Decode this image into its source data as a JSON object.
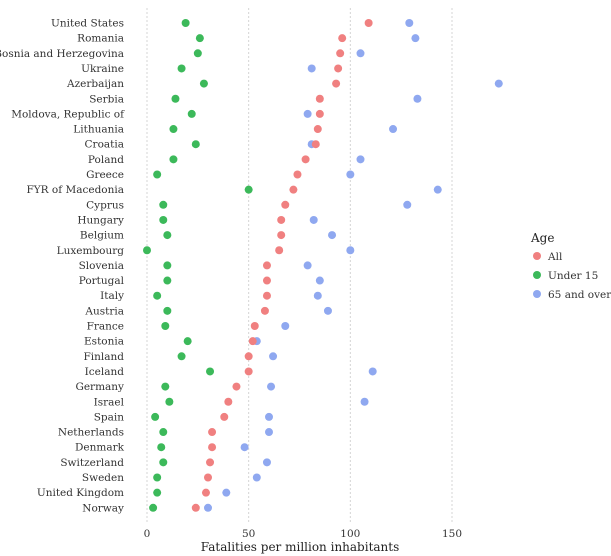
{
  "chart_data": {
    "type": "scatter",
    "xlabel": "Fatalities per million inhabitants",
    "xlim": [
      -5,
      175
    ],
    "xticks": [
      0,
      50,
      100,
      150
    ],
    "grid": "vertical",
    "legend": {
      "title": "Age",
      "placement": "right",
      "entries": [
        "All",
        "Under 15",
        "65 and over"
      ]
    },
    "categories": [
      "United States",
      "Romania",
      "Bosnia and Herzegovina",
      "Ukraine",
      "Azerbaijan",
      "Serbia",
      "Moldova, Republic of",
      "Lithuania",
      "Croatia",
      "Poland",
      "Greece",
      "FYR of Macedonia",
      "Cyprus",
      "Hungary",
      "Belgium",
      "Luxembourg",
      "Slovenia",
      "Portugal",
      "Italy",
      "Austria",
      "France",
      "Estonia",
      "Finland",
      "Iceland",
      "Germany",
      "Israel",
      "Spain",
      "Netherlands",
      "Denmark",
      "Switzerland",
      "Sweden",
      "United Kingdom",
      "Norway"
    ],
    "series": [
      {
        "name": "All",
        "color": "#f08080",
        "values": [
          109,
          96,
          95,
          94,
          93,
          85,
          85,
          84,
          83,
          78,
          74,
          72,
          68,
          66,
          66,
          65,
          59,
          59,
          59,
          58,
          53,
          52,
          50,
          50,
          44,
          40,
          38,
          32,
          32,
          31,
          30,
          29,
          24
        ]
      },
      {
        "name": "Under 15",
        "color": "#3cb95a",
        "values": [
          19,
          26,
          25,
          17,
          28,
          14,
          22,
          13,
          24,
          13,
          5,
          50,
          8,
          8,
          10,
          0,
          10,
          10,
          5,
          10,
          9,
          20,
          17,
          31,
          9,
          11,
          4,
          8,
          7,
          8,
          5,
          5,
          3
        ]
      },
      {
        "name": "65 and over",
        "color": "#8fa8f0",
        "values": [
          129,
          132,
          105,
          81,
          173,
          133,
          79,
          121,
          81,
          105,
          100,
          143,
          128,
          82,
          91,
          100,
          79,
          85,
          84,
          89,
          68,
          54,
          62,
          111,
          61,
          107,
          60,
          60,
          48,
          59,
          54,
          39,
          30
        ]
      }
    ]
  }
}
